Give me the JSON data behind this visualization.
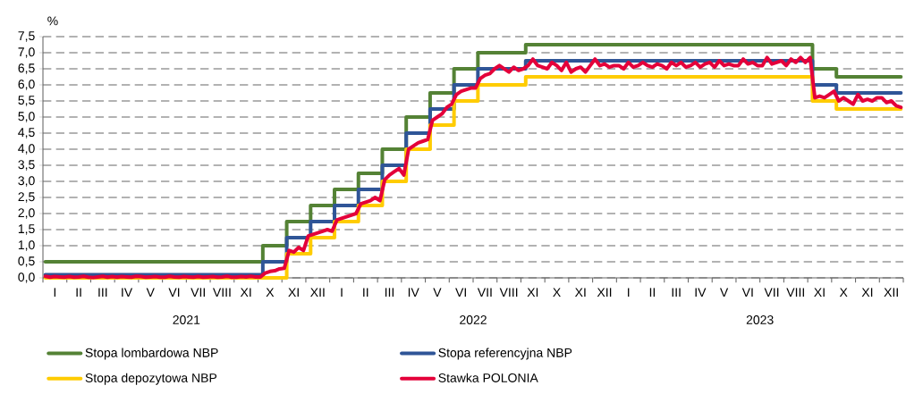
{
  "chart_data": {
    "type": "step",
    "ylabel": "%",
    "annotations": [
      "2021",
      "2022",
      "2023"
    ],
    "categories": [
      null,
      null,
      "I",
      null,
      null,
      null,
      null,
      "II",
      null,
      null,
      null,
      null,
      "III",
      null,
      null,
      null,
      null,
      "IV",
      null,
      null,
      null,
      null,
      "V",
      null,
      null,
      null,
      null,
      "VI",
      null,
      null,
      null,
      null,
      "VII",
      null,
      null,
      null,
      null,
      "VIII",
      null,
      null,
      null,
      null,
      "XI",
      null,
      null,
      null,
      null,
      "X",
      null,
      null,
      null,
      null,
      "XI",
      null,
      null,
      null,
      null,
      "XII",
      null,
      null,
      null,
      null,
      "I",
      null,
      null,
      null,
      null,
      "II",
      null,
      null,
      null,
      null,
      "III",
      null,
      null,
      null,
      null,
      "IV",
      null,
      null,
      null,
      null,
      "V",
      null,
      null,
      null,
      null,
      "VI",
      null,
      null,
      null,
      null,
      "VII",
      null,
      null,
      null,
      null,
      "VIII",
      null,
      null,
      null,
      null,
      "XI",
      null,
      null,
      null,
      null,
      "X",
      null,
      null,
      null,
      null,
      "XI",
      null,
      null,
      null,
      null,
      "XII",
      null,
      null,
      null,
      null,
      "I",
      null,
      null,
      null,
      null,
      "II",
      null,
      null,
      null,
      null,
      "III",
      null,
      null,
      null,
      null,
      "IV",
      null,
      null,
      null,
      null,
      "V",
      null,
      null,
      null,
      null,
      "VI",
      null,
      null,
      null,
      null,
      "VII",
      null,
      null,
      null,
      null,
      "VIII",
      null,
      null,
      null,
      null,
      "XI",
      null,
      null,
      null,
      null,
      "X",
      null,
      null,
      null,
      null,
      "XI",
      null,
      null,
      null,
      null,
      "XII",
      null,
      null
    ],
    "ylim": [
      0,
      7.5
    ],
    "yticks": [
      {
        "value": 0,
        "label": "0,0"
      },
      {
        "value": 0.5,
        "label": "0,5"
      },
      {
        "value": 1,
        "label": "1,0"
      },
      {
        "value": 1.5,
        "label": "1,5"
      },
      {
        "value": 2,
        "label": "2,0"
      },
      {
        "value": 2.5,
        "label": "2,5"
      },
      {
        "value": 3,
        "label": "3,0"
      },
      {
        "value": 3.5,
        "label": "3,5"
      },
      {
        "value": 4,
        "label": "4,0"
      },
      {
        "value": 4.5,
        "label": "4,5"
      },
      {
        "value": 5,
        "label": "5,0"
      },
      {
        "value": 5.5,
        "label": "5,5"
      },
      {
        "value": 6,
        "label": "6,0"
      },
      {
        "value": 6.5,
        "label": "6,5"
      },
      {
        "value": 7,
        "label": "7,0"
      },
      {
        "value": 7.5,
        "label": "7,5"
      }
    ],
    "grid": "y",
    "legend": "bottom",
    "series": [
      {
        "name": "Stopa lombardowa NBP",
        "color": "#548235",
        "values": [
          0.5,
          0.5,
          0.5,
          0.5,
          0.5,
          0.5,
          0.5,
          0.5,
          0.5,
          0.5,
          0.5,
          0.5,
          0.5,
          0.5,
          0.5,
          0.5,
          0.5,
          0.5,
          0.5,
          0.5,
          0.5,
          0.5,
          0.5,
          0.5,
          0.5,
          0.5,
          0.5,
          0.5,
          0.5,
          0.5,
          0.5,
          0.5,
          0.5,
          0.5,
          0.5,
          0.5,
          0.5,
          0.5,
          0.5,
          0.5,
          0.5,
          0.5,
          0.5,
          0.5,
          0.5,
          0.5,
          1.0,
          1.0,
          1.0,
          1.0,
          1.0,
          1.75,
          1.75,
          1.75,
          1.75,
          1.75,
          2.25,
          2.25,
          2.25,
          2.25,
          2.25,
          2.75,
          2.75,
          2.75,
          2.75,
          2.75,
          3.25,
          3.25,
          3.25,
          3.25,
          3.25,
          4.0,
          4.0,
          4.0,
          4.0,
          4.0,
          5.0,
          5.0,
          5.0,
          5.0,
          5.0,
          5.75,
          5.75,
          5.75,
          5.75,
          5.75,
          6.5,
          6.5,
          6.5,
          6.5,
          6.5,
          7.0,
          7.0,
          7.0,
          7.0,
          7.0,
          7.0,
          7.0,
          7.0,
          7.0,
          7.0,
          7.25,
          7.25,
          7.25,
          7.25,
          7.25,
          7.25,
          7.25,
          7.25,
          7.25,
          7.25,
          7.25,
          7.25,
          7.25,
          7.25,
          7.25,
          7.25,
          7.25,
          7.25,
          7.25,
          7.25,
          7.25,
          7.25,
          7.25,
          7.25,
          7.25,
          7.25,
          7.25,
          7.25,
          7.25,
          7.25,
          7.25,
          7.25,
          7.25,
          7.25,
          7.25,
          7.25,
          7.25,
          7.25,
          7.25,
          7.25,
          7.25,
          7.25,
          7.25,
          7.25,
          7.25,
          7.25,
          7.25,
          7.25,
          7.25,
          7.25,
          7.25,
          7.25,
          7.25,
          7.25,
          7.25,
          7.25,
          7.25,
          7.25,
          7.25,
          7.25,
          6.5,
          6.5,
          6.5,
          6.5,
          6.5,
          6.25,
          6.25,
          6.25,
          6.25,
          6.25,
          6.25,
          6.25,
          6.25,
          6.25,
          6.25,
          6.25,
          6.25,
          6.25,
          6.25
        ]
      },
      {
        "name": "Stopa referencyjna NBP",
        "color": "#2f5597",
        "values": [
          0.1,
          0.1,
          0.1,
          0.1,
          0.1,
          0.1,
          0.1,
          0.1,
          0.1,
          0.1,
          0.1,
          0.1,
          0.1,
          0.1,
          0.1,
          0.1,
          0.1,
          0.1,
          0.1,
          0.1,
          0.1,
          0.1,
          0.1,
          0.1,
          0.1,
          0.1,
          0.1,
          0.1,
          0.1,
          0.1,
          0.1,
          0.1,
          0.1,
          0.1,
          0.1,
          0.1,
          0.1,
          0.1,
          0.1,
          0.1,
          0.1,
          0.1,
          0.1,
          0.1,
          0.1,
          0.1,
          0.5,
          0.5,
          0.5,
          0.5,
          0.5,
          1.25,
          1.25,
          1.25,
          1.25,
          1.25,
          1.75,
          1.75,
          1.75,
          1.75,
          1.75,
          2.25,
          2.25,
          2.25,
          2.25,
          2.25,
          2.75,
          2.75,
          2.75,
          2.75,
          2.75,
          3.5,
          3.5,
          3.5,
          3.5,
          3.5,
          4.5,
          4.5,
          4.5,
          4.5,
          4.5,
          5.25,
          5.25,
          5.25,
          5.25,
          5.25,
          6.0,
          6.0,
          6.0,
          6.0,
          6.0,
          6.5,
          6.5,
          6.5,
          6.5,
          6.5,
          6.5,
          6.5,
          6.5,
          6.5,
          6.5,
          6.75,
          6.75,
          6.75,
          6.75,
          6.75,
          6.75,
          6.75,
          6.75,
          6.75,
          6.75,
          6.75,
          6.75,
          6.75,
          6.75,
          6.75,
          6.75,
          6.75,
          6.75,
          6.75,
          6.75,
          6.75,
          6.75,
          6.75,
          6.75,
          6.75,
          6.75,
          6.75,
          6.75,
          6.75,
          6.75,
          6.75,
          6.75,
          6.75,
          6.75,
          6.75,
          6.75,
          6.75,
          6.75,
          6.75,
          6.75,
          6.75,
          6.75,
          6.75,
          6.75,
          6.75,
          6.75,
          6.75,
          6.75,
          6.75,
          6.75,
          6.75,
          6.75,
          6.75,
          6.75,
          6.75,
          6.75,
          6.75,
          6.75,
          6.75,
          6.75,
          6.0,
          6.0,
          6.0,
          6.0,
          6.0,
          5.75,
          5.75,
          5.75,
          5.75,
          5.75,
          5.75,
          5.75,
          5.75,
          5.75,
          5.75,
          5.75,
          5.75,
          5.75,
          5.75
        ]
      },
      {
        "name": "Stopa depozytowa NBP",
        "color": "#ffcc00",
        "values": [
          0.0,
          0.0,
          0.0,
          0.0,
          0.0,
          0.0,
          0.0,
          0.0,
          0.0,
          0.0,
          0.0,
          0.0,
          0.0,
          0.0,
          0.0,
          0.0,
          0.0,
          0.0,
          0.0,
          0.0,
          0.0,
          0.0,
          0.0,
          0.0,
          0.0,
          0.0,
          0.0,
          0.0,
          0.0,
          0.0,
          0.0,
          0.0,
          0.0,
          0.0,
          0.0,
          0.0,
          0.0,
          0.0,
          0.0,
          0.0,
          0.0,
          0.0,
          0.0,
          0.0,
          0.0,
          0.0,
          0.0,
          0.0,
          0.0,
          0.0,
          0.0,
          0.75,
          0.75,
          0.75,
          0.75,
          0.75,
          1.25,
          1.25,
          1.25,
          1.25,
          1.25,
          1.75,
          1.75,
          1.75,
          1.75,
          1.75,
          2.25,
          2.25,
          2.25,
          2.25,
          2.25,
          3.0,
          3.0,
          3.0,
          3.0,
          3.0,
          4.0,
          4.0,
          4.0,
          4.0,
          4.0,
          4.75,
          4.75,
          4.75,
          4.75,
          4.75,
          5.5,
          5.5,
          5.5,
          5.5,
          5.5,
          6.0,
          6.0,
          6.0,
          6.0,
          6.0,
          6.0,
          6.0,
          6.0,
          6.0,
          6.0,
          6.25,
          6.25,
          6.25,
          6.25,
          6.25,
          6.25,
          6.25,
          6.25,
          6.25,
          6.25,
          6.25,
          6.25,
          6.25,
          6.25,
          6.25,
          6.25,
          6.25,
          6.25,
          6.25,
          6.25,
          6.25,
          6.25,
          6.25,
          6.25,
          6.25,
          6.25,
          6.25,
          6.25,
          6.25,
          6.25,
          6.25,
          6.25,
          6.25,
          6.25,
          6.25,
          6.25,
          6.25,
          6.25,
          6.25,
          6.25,
          6.25,
          6.25,
          6.25,
          6.25,
          6.25,
          6.25,
          6.25,
          6.25,
          6.25,
          6.25,
          6.25,
          6.25,
          6.25,
          6.25,
          6.25,
          6.25,
          6.25,
          6.25,
          6.25,
          6.25,
          5.5,
          5.5,
          5.5,
          5.5,
          5.5,
          5.25,
          5.25,
          5.25,
          5.25,
          5.25,
          5.25,
          5.25,
          5.25,
          5.25,
          5.25,
          5.25,
          5.25,
          5.25,
          5.25
        ]
      },
      {
        "name": "Stawka POLONIA",
        "color": "#e4003a",
        "type": "line",
        "values": [
          0.05,
          0.02,
          0.04,
          0.03,
          0.02,
          0.04,
          0.02,
          0.03,
          0.05,
          0.02,
          0.01,
          0.03,
          0.05,
          0.02,
          0.04,
          0.02,
          0.04,
          0.03,
          0.02,
          0.05,
          0.04,
          0.02,
          0.03,
          0.04,
          0.02,
          0.02,
          0.05,
          0.03,
          0.02,
          0.04,
          0.03,
          0.02,
          0.04,
          0.02,
          0.03,
          0.04,
          0.02,
          0.03,
          0.05,
          0.02,
          0.02,
          0.04,
          0.03,
          0.05,
          0.03,
          0.03,
          0.15,
          0.2,
          0.22,
          0.28,
          0.3,
          0.85,
          0.8,
          0.95,
          0.85,
          1.3,
          1.35,
          1.4,
          1.45,
          1.5,
          1.45,
          1.8,
          1.85,
          1.9,
          1.95,
          2.0,
          2.3,
          2.35,
          2.4,
          2.5,
          2.4,
          3.05,
          3.2,
          3.3,
          3.4,
          3.2,
          4.0,
          4.1,
          4.2,
          4.25,
          4.3,
          4.9,
          5.0,
          5.1,
          5.3,
          5.4,
          5.7,
          5.8,
          5.85,
          5.9,
          5.9,
          6.2,
          6.3,
          6.35,
          6.5,
          6.6,
          6.5,
          6.4,
          6.55,
          6.45,
          6.5,
          6.6,
          6.8,
          6.6,
          6.55,
          6.5,
          6.7,
          6.6,
          6.45,
          6.7,
          6.4,
          6.5,
          6.55,
          6.4,
          6.6,
          6.8,
          6.6,
          6.65,
          6.55,
          6.6,
          6.6,
          6.5,
          6.7,
          6.55,
          6.6,
          6.7,
          6.6,
          6.55,
          6.65,
          6.6,
          6.5,
          6.7,
          6.6,
          6.7,
          6.55,
          6.6,
          6.7,
          6.55,
          6.65,
          6.7,
          6.55,
          6.75,
          6.6,
          6.65,
          6.6,
          6.6,
          6.8,
          6.65,
          6.7,
          6.6,
          6.6,
          6.85,
          6.65,
          6.7,
          6.75,
          6.6,
          6.8,
          6.7,
          6.85,
          6.7,
          6.85,
          5.6,
          5.65,
          5.6,
          5.7,
          5.8,
          5.5,
          5.6,
          5.5,
          5.4,
          5.7,
          5.5,
          5.55,
          5.5,
          5.6,
          5.6,
          5.45,
          5.5,
          5.35,
          5.3
        ]
      }
    ]
  }
}
